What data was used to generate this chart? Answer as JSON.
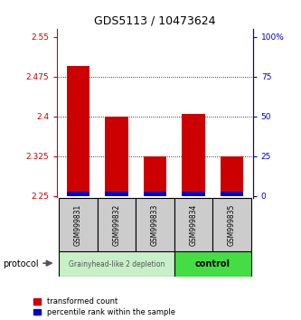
{
  "title": "GDS5113 / 10473624",
  "samples": [
    "GSM999831",
    "GSM999832",
    "GSM999833",
    "GSM999834",
    "GSM999835"
  ],
  "red_tops": [
    2.495,
    2.4,
    2.325,
    2.405,
    2.325
  ],
  "base_value": 2.25,
  "blue_segment_height": 0.007,
  "ylim_left": [
    2.245,
    2.565
  ],
  "ylim_right": [
    -1.667,
    100
  ],
  "yticks_left": [
    2.25,
    2.325,
    2.4,
    2.475,
    2.55
  ],
  "yticks_right": [
    0,
    25,
    50,
    75,
    100
  ],
  "ytick_labels_left": [
    "2.25",
    "2.325",
    "2.4",
    "2.475",
    "2.55"
  ],
  "ytick_labels_right": [
    "0",
    "25",
    "50",
    "75",
    "100%"
  ],
  "gridlines": [
    2.325,
    2.4,
    2.475
  ],
  "group1_samples": [
    0,
    1,
    2
  ],
  "group2_samples": [
    3,
    4
  ],
  "group1_label": "Grainyhead-like 2 depletion",
  "group2_label": "control",
  "protocol_label": "protocol",
  "group1_color": "#c8f0c8",
  "group2_color": "#44dd44",
  "bar_color_red": "#cc0000",
  "bar_color_blue": "#0000cc",
  "bar_width": 0.6,
  "legend_red": "transformed count",
  "legend_blue": "percentile rank within the sample",
  "left_axis_color": "#cc0000",
  "right_axis_color": "#0000cc",
  "sample_box_color": "#cccccc",
  "xlim": [
    -0.55,
    4.55
  ]
}
